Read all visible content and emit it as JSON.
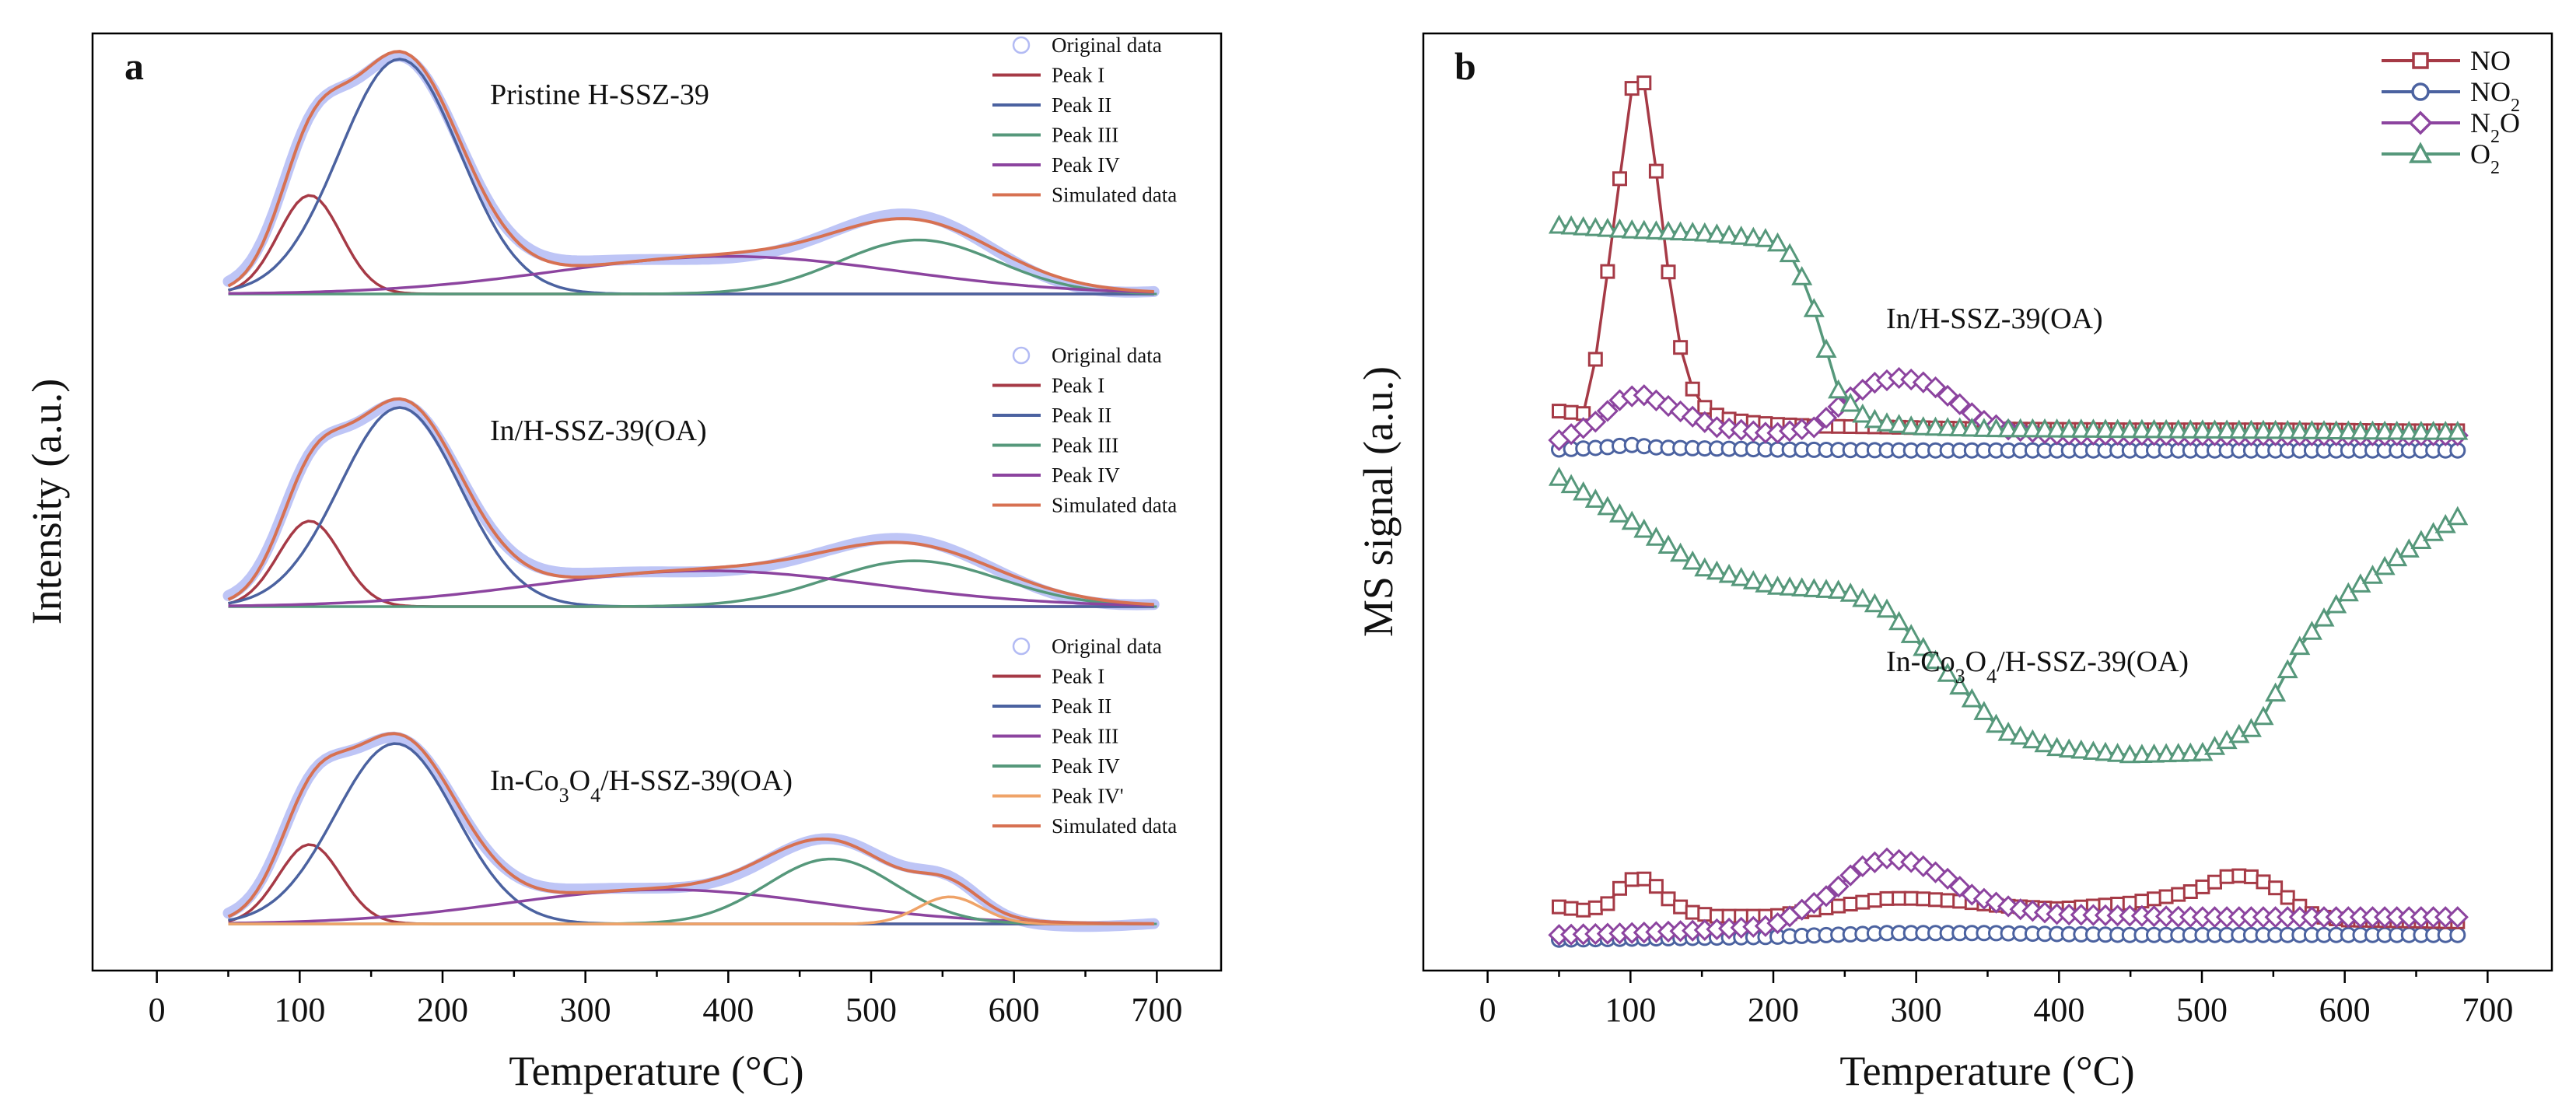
{
  "chart_data": [
    {
      "type": "line",
      "panel": "a",
      "title": "",
      "xlabel": "Temperature (°C)",
      "ylabel": "Intensity (a.u.)",
      "xlim": [
        -45,
        745
      ],
      "xticks": [
        0,
        100,
        200,
        300,
        400,
        500,
        600,
        700
      ],
      "colors": {
        "original": "#b3bbf4",
        "peak_i": "#a63a46",
        "peak_ii": "#4b62a0",
        "peak_iii": "#56987b",
        "peak_iv": "#8c449f",
        "peak_iv_prime": "#efa368",
        "simulated": "#d77152"
      },
      "samples": [
        {
          "label": "Pristine H-SSZ-39",
          "legend": [
            "Original data",
            "Peak I",
            "Peak II",
            "Peak III",
            "Peak IV",
            "Simulated data"
          ],
          "series": [
            {
              "name": "Peak I",
              "color_key": "peak_i",
              "center": 107,
              "sigma": 22,
              "height": 0.42
            },
            {
              "name": "Peak II",
              "color_key": "peak_ii",
              "center": 170,
              "sigma": 42,
              "height": 1.0
            },
            {
              "name": "Peak III",
              "color_key": "peak_iii",
              "center": 533,
              "sigma": 55,
              "height": 0.23
            },
            {
              "name": "Peak IV",
              "color_key": "peak_iv",
              "center": 400,
              "sigma": 120,
              "height": 0.16
            }
          ]
        },
        {
          "label": "In/H-SSZ-39(OA)",
          "legend": [
            "Original data",
            "Peak I",
            "Peak II",
            "Peak III",
            "Peak IV",
            "Simulated data"
          ],
          "series": [
            {
              "name": "Peak I",
              "color_key": "peak_i",
              "center": 107,
              "sigma": 22,
              "height": 0.43
            },
            {
              "name": "Peak II",
              "color_key": "peak_ii",
              "center": 170,
              "sigma": 42,
              "height": 1.0
            },
            {
              "name": "Peak III",
              "color_key": "peak_iii",
              "center": 530,
              "sigma": 60,
              "height": 0.23
            },
            {
              "name": "Peak IV",
              "color_key": "peak_iv",
              "center": 385,
              "sigma": 120,
              "height": 0.18
            }
          ]
        },
        {
          "label": "In-Co3O4/H-SSZ-39(OA)",
          "legend": [
            "Original data",
            "Peak I",
            "Peak II",
            "Peak III",
            "Peak IV",
            "Peak IV'",
            "Simulated data"
          ],
          "series": [
            {
              "name": "Peak I",
              "color_key": "peak_i",
              "center": 107,
              "sigma": 22,
              "height": 0.44
            },
            {
              "name": "Peak II",
              "color_key": "peak_ii",
              "center": 167,
              "sigma": 42,
              "height": 1.0
            },
            {
              "name": "Peak III",
              "color_key": "peak_iv",
              "center": 355,
              "sigma": 110,
              "height": 0.19
            },
            {
              "name": "Peak IV",
              "color_key": "peak_iii",
              "center": 472,
              "sigma": 45,
              "height": 0.36
            },
            {
              "name": "Peak IV'",
              "color_key": "peak_iv_prime",
              "center": 555,
              "sigma": 22,
              "height": 0.15
            }
          ]
        }
      ]
    },
    {
      "type": "scatter-line",
      "panel": "b",
      "title": "",
      "xlabel": "Temperature (°C)",
      "ylabel": "MS signal (a.u.)",
      "xlim": [
        -45,
        745
      ],
      "ylim": [
        0,
        1
      ],
      "xticks": [
        0,
        100,
        200,
        300,
        400,
        500,
        600,
        700
      ],
      "legend": [
        {
          "text": "NO",
          "base": "NO",
          "sub": "",
          "rest": "",
          "color": "#a63a46",
          "marker": "square"
        },
        {
          "text": "NO2",
          "base": "NO",
          "sub": "2",
          "rest": "",
          "color": "#4b62a0",
          "marker": "circle"
        },
        {
          "text": "N2O",
          "base": "N",
          "sub": "2",
          "rest": "O",
          "color": "#8c449f",
          "marker": "diamond"
        },
        {
          "text": "O2",
          "base": "O",
          "sub": "2",
          "rest": "",
          "color": "#56987b",
          "marker": "triangle"
        }
      ],
      "groups": [
        {
          "label": "In/H-SSZ-39(OA)",
          "series": [
            {
              "name": "NO",
              "x": [
                50,
                70,
                80,
                90,
                100,
                105,
                110,
                120,
                130,
                140,
                150,
                160,
                170,
                185,
                200,
                230,
                280,
                350,
                450,
                550,
                650,
                680
              ],
              "y": [
                0.597,
                0.594,
                0.7,
                0.815,
                0.935,
                0.967,
                0.945,
                0.83,
                0.7,
                0.63,
                0.603,
                0.593,
                0.588,
                0.585,
                0.583,
                0.581,
                0.58,
                0.578,
                0.577,
                0.577,
                0.576,
                0.576
              ]
            },
            {
              "name": "NO2",
              "x": [
                50,
                80,
                100,
                120,
                200,
                300,
                400,
                500,
                600,
                680
              ],
              "y": [
                0.556,
                0.558,
                0.561,
                0.558,
                0.556,
                0.555,
                0.555,
                0.555,
                0.555,
                0.555
              ]
            },
            {
              "name": "N2O",
              "x": [
                50,
                75,
                95,
                110,
                130,
                160,
                200,
                230,
                250,
                270,
                290,
                310,
                330,
                345,
                365,
                400,
                500,
                600,
                680
              ],
              "y": [
                0.566,
                0.585,
                0.612,
                0.614,
                0.6,
                0.58,
                0.573,
                0.58,
                0.608,
                0.627,
                0.633,
                0.626,
                0.605,
                0.588,
                0.577,
                0.572,
                0.571,
                0.571,
                0.571
              ]
            },
            {
              "name": "O2",
              "x": [
                50,
                80,
                100,
                150,
                200,
                215,
                230,
                245,
                260,
                275,
                300,
                350,
                450,
                550,
                650,
                680
              ],
              "y": [
                0.795,
                0.792,
                0.79,
                0.787,
                0.78,
                0.76,
                0.7,
                0.62,
                0.595,
                0.585,
                0.58,
                0.578,
                0.577,
                0.576,
                0.575,
                0.575
              ]
            }
          ]
        },
        {
          "label": "In-Co3O4/H-SSZ-39(OA)",
          "series": [
            {
              "name": "NO",
              "x": [
                50,
                70,
                85,
                95,
                105,
                115,
                125,
                140,
                160,
                200,
                250,
                280,
                300,
                330,
                360,
                400,
                450,
                490,
                510,
                520,
                535,
                550,
                565,
                580,
                600,
                680
              ],
              "y": [
                0.068,
                0.064,
                0.072,
                0.093,
                0.1,
                0.095,
                0.078,
                0.063,
                0.058,
                0.058,
                0.07,
                0.077,
                0.077,
                0.074,
                0.069,
                0.066,
                0.072,
                0.083,
                0.095,
                0.102,
                0.1,
                0.09,
                0.072,
                0.058,
                0.054,
                0.052
              ]
            },
            {
              "name": "NO2",
              "x": [
                50,
                100,
                200,
                280,
                350,
                450,
                550,
                680
              ],
              "y": [
                0.033,
                0.034,
                0.036,
                0.04,
                0.04,
                0.038,
                0.038,
                0.038
              ]
            },
            {
              "name": "N2O",
              "x": [
                50,
                100,
                150,
                200,
                240,
                260,
                280,
                300,
                320,
                340,
                370,
                400,
                500,
                600,
                680
              ],
              "y": [
                0.038,
                0.04,
                0.043,
                0.048,
                0.082,
                0.11,
                0.12,
                0.115,
                0.1,
                0.08,
                0.066,
                0.06,
                0.057,
                0.057,
                0.057
              ]
            },
            {
              "name": "O2",
              "x": [
                50,
                100,
                150,
                200,
                250,
                280,
                320,
                360,
                400,
                450,
                500,
                540,
                570,
                600,
                650,
                680
              ],
              "y": [
                0.526,
                0.48,
                0.43,
                0.41,
                0.405,
                0.385,
                0.32,
                0.256,
                0.237,
                0.23,
                0.232,
                0.262,
                0.35,
                0.4,
                0.455,
                0.485
              ]
            }
          ]
        }
      ]
    }
  ]
}
